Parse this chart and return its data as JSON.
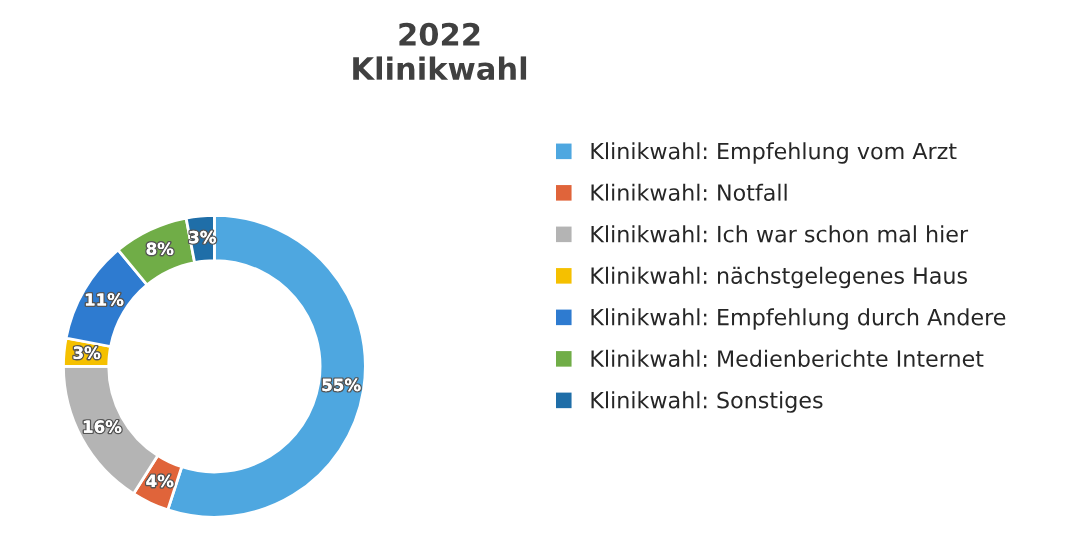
{
  "chart_data": {
    "type": "donut",
    "title": "2022\nKlinikwahl",
    "categories": [
      "Klinikwahl: Empfehlung vom Arzt",
      "Klinikwahl: Notfall",
      "Klinikwahl: Ich war schon mal hier",
      "Klinikwahl: nächstgelegenes Haus",
      "Klinikwahl: Empfehlung durch Andere",
      "Klinikwahl: Medienberichte Internet",
      "Klinikwahl: Sonstiges"
    ],
    "values": [
      55,
      4,
      16,
      3,
      11,
      8,
      3
    ],
    "colors": [
      "#4ea7e0",
      "#e0643a",
      "#b4b4b4",
      "#f5c000",
      "#2e7bd0",
      "#70ad47",
      "#1f6ea8"
    ],
    "value_labels": [
      "55%",
      "4%",
      "16%",
      "3%",
      "11%",
      "8%",
      "3%"
    ],
    "legend": "right"
  }
}
